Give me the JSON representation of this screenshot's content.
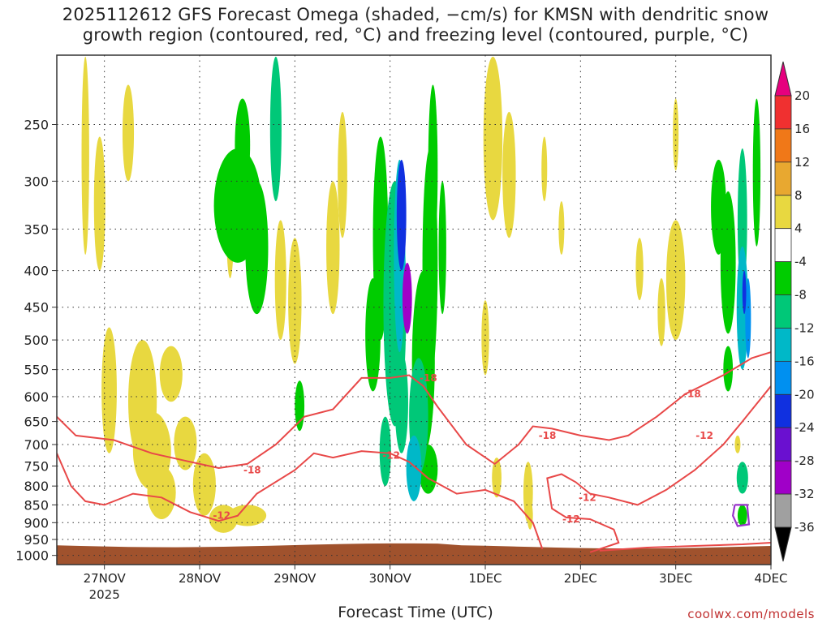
{
  "title_lines": [
    "2025112612 GFS Forecast Omega (shaded, −cm/s) for KMSN with dendritic snow",
    "growth region (contoured, red, °C) and freezing level (contoured, purple, °C)"
  ],
  "x_axis_title": "Forecast Time (UTC)",
  "credit": "coolwx.com/models",
  "colors": {
    "dgz_contour": "#e84848",
    "freezing_contour": "#9933cc",
    "ground": "#a0522d"
  },
  "chart_data": {
    "type": "heatmap",
    "title": "2025112612 GFS Forecast Omega (shaded, −cm/s) for KMSN with dendritic snow growth region (contoured, red, °C) and freezing level (contoured, purple, °C)",
    "xlabel": "Forecast Time (UTC)",
    "ylabel": "",
    "x_range_days": [
      "2025-11-26 12Z",
      "2025-12-04 00Z"
    ],
    "x_ticks": [
      "27NOV",
      "28NOV",
      "29NOV",
      "30NOV",
      "1DEC",
      "2DEC",
      "3DEC",
      "4DEC"
    ],
    "x_tick_year": "2025",
    "y_ticks": [
      250,
      300,
      350,
      400,
      450,
      500,
      550,
      600,
      650,
      700,
      750,
      800,
      850,
      900,
      950,
      1000
    ],
    "y_scale": "log-pressure",
    "y_range_hpa": [
      200,
      1030
    ],
    "grid": "dotted",
    "colorbar": {
      "labels": [
        20,
        16,
        12,
        8,
        4,
        -4,
        -8,
        -12,
        -16,
        -20,
        -24,
        -28,
        -32,
        -36
      ],
      "bins": [
        {
          "from": 20,
          "to": 99,
          "color": "#e6007e"
        },
        {
          "from": 16,
          "to": 20,
          "color": "#f03030"
        },
        {
          "from": 12,
          "to": 16,
          "color": "#f07818"
        },
        {
          "from": 8,
          "to": 12,
          "color": "#e8a830"
        },
        {
          "from": 4,
          "to": 8,
          "color": "#e8d840"
        },
        {
          "from": -4,
          "to": 4,
          "color": "#ffffff"
        },
        {
          "from": -8,
          "to": -4,
          "color": "#00cc00"
        },
        {
          "from": -12,
          "to": -8,
          "color": "#00c878"
        },
        {
          "from": -16,
          "to": -12,
          "color": "#00b8c8"
        },
        {
          "from": -20,
          "to": -16,
          "color": "#0090f0"
        },
        {
          "from": -24,
          "to": -20,
          "color": "#1030e0"
        },
        {
          "from": -28,
          "to": -24,
          "color": "#6a10d0"
        },
        {
          "from": -32,
          "to": -28,
          "color": "#a000c8"
        },
        {
          "from": -36,
          "to": -32,
          "color": "#a0a0a0"
        },
        {
          "from": -99,
          "to": -36,
          "color": "#000000"
        }
      ]
    },
    "contour_labels": [
      {
        "text": "-18",
        "day": 1.96,
        "p": 760
      },
      {
        "text": "-12",
        "day": 1.64,
        "p": 880
      },
      {
        "text": "-12",
        "day": 3.42,
        "p": 725
      },
      {
        "text": "-18",
        "day": 3.81,
        "p": 565
      },
      {
        "text": "-18",
        "day": 5.06,
        "p": 680
      },
      {
        "text": "-12",
        "day": 5.48,
        "p": 830
      },
      {
        "text": "-12",
        "day": 5.31,
        "p": 890
      },
      {
        "text": "-18",
        "day": 6.58,
        "p": 595
      },
      {
        "text": "-12",
        "day": 6.71,
        "p": 680
      }
    ]
  }
}
